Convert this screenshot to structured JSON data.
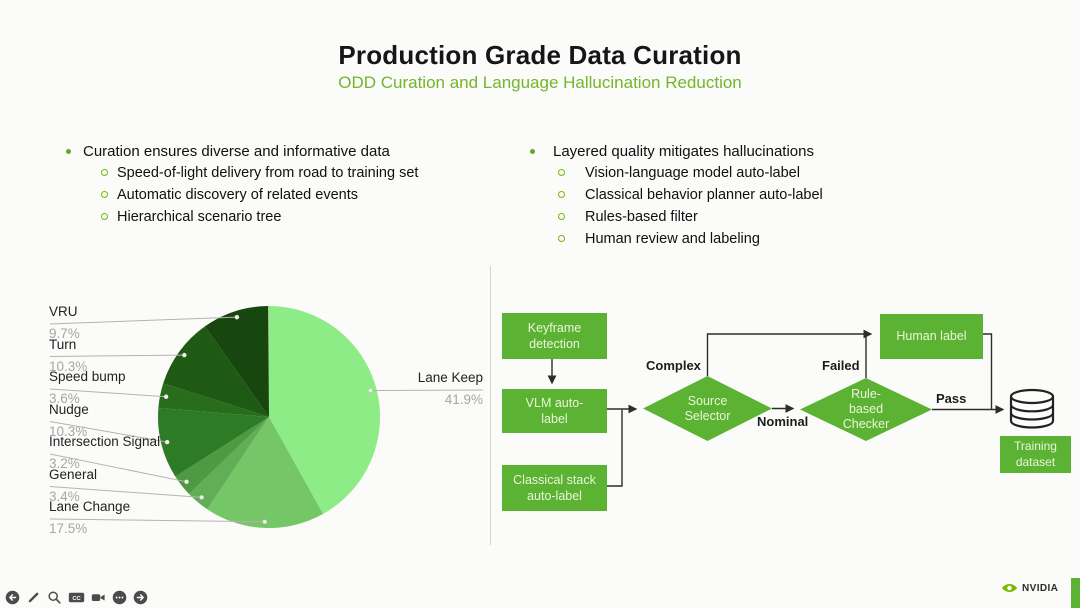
{
  "slide": {
    "title": "Production Grade Data Curation",
    "subtitle": "ODD Curation and Language Hallucination Reduction"
  },
  "bullets": {
    "left": {
      "heading": "Curation ensures diverse and informative data",
      "items": [
        "Speed-of-light delivery from road to training set",
        "Automatic discovery of related events",
        "Hierarchical scenario tree"
      ]
    },
    "right": {
      "heading": "Layered quality mitigates hallucinations",
      "items": [
        "Vision-language model auto-label",
        "Classical behavior planner auto-label",
        "Rules-based filter",
        "Human review and labeling"
      ]
    }
  },
  "chart_data": {
    "type": "pie",
    "unit": "%",
    "slices_clockwise_from_top": [
      {
        "label": "Lane Keep",
        "value": 41.9,
        "color": "#8dec85",
        "label_side": "right"
      },
      {
        "label": "Lane Change",
        "value": 17.5,
        "color": "#74c667",
        "label_side": "left"
      },
      {
        "label": "General",
        "value": 3.4,
        "color": "#61ae56",
        "label_side": "left"
      },
      {
        "label": "Intersection Signal",
        "value": 3.2,
        "color": "#4e9a43",
        "label_side": "left"
      },
      {
        "label": "Nudge",
        "value": 10.3,
        "color": "#2e7b26",
        "label_side": "left"
      },
      {
        "label": "Speed bump",
        "value": 3.6,
        "color": "#276d1c",
        "label_side": "left"
      },
      {
        "label": "Turn",
        "value": 10.3,
        "color": "#1e5a13",
        "label_side": "left"
      },
      {
        "label": "VRU",
        "value": 9.7,
        "color": "#17470e",
        "label_side": "left"
      }
    ]
  },
  "flowchart": {
    "boxes": {
      "keyframe": "Keyframe detection",
      "vlm": "VLM auto-label",
      "classical": "Classical stack auto-label",
      "human": "Human label",
      "training": "Training dataset"
    },
    "diamonds": {
      "source": "Source Selector",
      "rule": "Rule-based Checker"
    },
    "edge_labels": {
      "complex": "Complex",
      "nominal": "Nominal",
      "failed": "Failed",
      "pass": "Pass"
    },
    "database_icon": "database-cylinder-icon"
  },
  "toolbar": {
    "buttons": [
      "back",
      "draw",
      "search",
      "closed-captions",
      "camera",
      "more",
      "forward"
    ],
    "cc_text": "CC"
  },
  "branding": {
    "logo_text": "NVIDIA"
  },
  "colors": {
    "accent_green": "#76b900",
    "node_green": "#5cb232",
    "subtitle_green": "#72b62a",
    "line_dark": "#2d2d2d"
  }
}
